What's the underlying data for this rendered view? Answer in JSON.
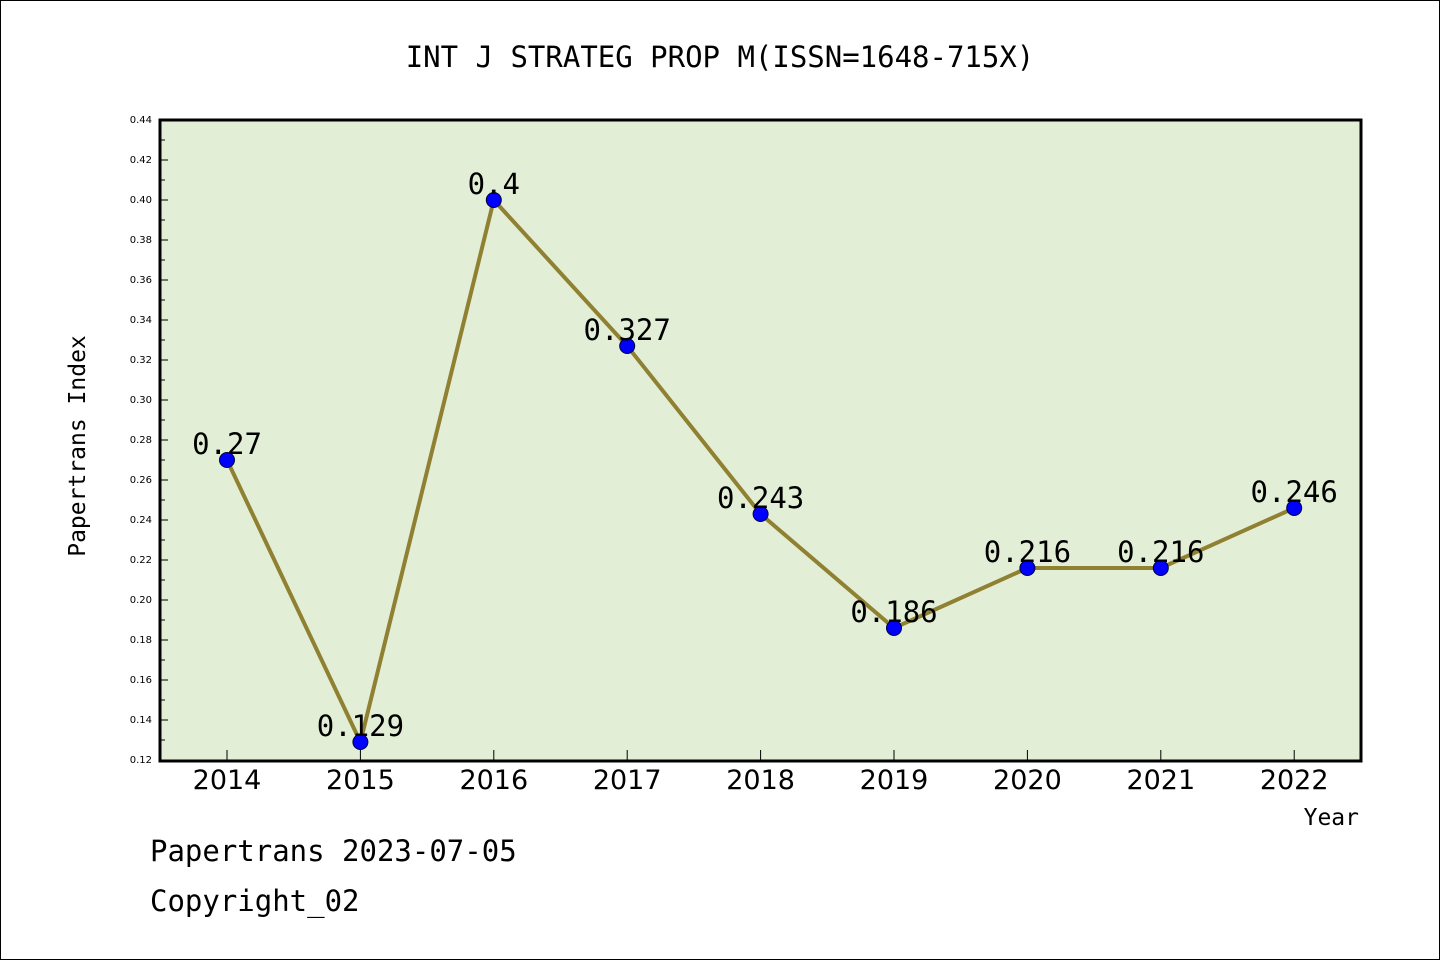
{
  "footer": {
    "date_line": "Papertrans 2023-07-05",
    "copyright_line": "Copyright_02"
  },
  "colors": {
    "plot_background": "#e2efd6",
    "line": "#8f8032",
    "marker": "#0000ff",
    "axis": "#000000"
  },
  "chart_data": {
    "type": "line",
    "title": "INT J STRATEG PROP M(ISSN=1648-715X)",
    "xlabel": "Year",
    "ylabel": "Papertrans Index",
    "categories": [
      "2014",
      "2015",
      "2016",
      "2017",
      "2018",
      "2019",
      "2020",
      "2021",
      "2022"
    ],
    "series": [
      {
        "values": [
          0.27,
          0.129,
          0.4,
          0.327,
          0.243,
          0.186,
          0.216,
          0.216,
          0.246
        ],
        "labels": [
          "0.27",
          "0.129",
          "0.4",
          "0.327",
          "0.243",
          "0.186",
          "0.216",
          "0.216",
          "0.246"
        ]
      }
    ],
    "ylim": [
      0.12,
      0.44
    ],
    "yticks": [
      "0.12",
      "0.14",
      "0.16",
      "0.18",
      "0.20",
      "0.22",
      "0.24",
      "0.26",
      "0.28",
      "0.30",
      "0.32",
      "0.34",
      "0.36",
      "0.38",
      "0.40",
      "0.42",
      "0.44"
    ],
    "grid": false,
    "legend": "none"
  }
}
